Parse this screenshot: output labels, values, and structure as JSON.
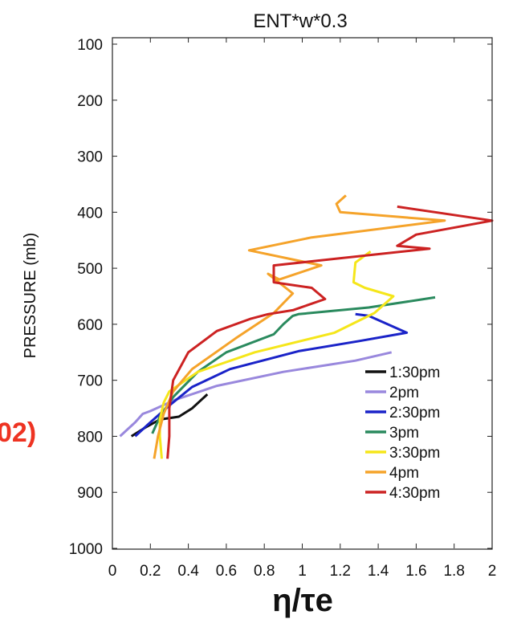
{
  "panel_tag": "02)",
  "chart_data": {
    "type": "line",
    "title": "ENT*w*0.3",
    "xlabel": "η/τe",
    "ylabel": "PRESSURE (mb)",
    "xlim": [
      0,
      2
    ],
    "ylim": [
      1000,
      100
    ],
    "y_inverted": true,
    "grid": false,
    "legend_placement": "lower-right",
    "x_ticks": [
      0,
      0.2,
      0.4,
      0.6,
      0.8,
      1,
      1.2,
      1.4,
      1.6,
      1.8,
      2
    ],
    "x_tick_labels": [
      "0",
      "0.2",
      "0.4",
      "0.6",
      "0.8",
      "1",
      "1.2",
      "1.4",
      "1.6",
      "1.8",
      "2"
    ],
    "y_ticks": [
      100,
      200,
      300,
      400,
      500,
      600,
      700,
      800,
      900,
      1000
    ],
    "y_tick_labels": [
      "100",
      "200",
      "300",
      "400",
      "500",
      "600",
      "700",
      "800",
      "900",
      "1000"
    ],
    "series": [
      {
        "name": "1:30pm",
        "color": "#111111",
        "x": [
          0.5,
          0.42,
          0.35,
          0.25,
          0.17,
          0.1
        ],
        "y": [
          725,
          750,
          765,
          770,
          785,
          800
        ]
      },
      {
        "name": "2pm",
        "color": "#9988dd",
        "x": [
          1.47,
          1.28,
          0.9,
          0.55,
          0.33,
          0.2,
          0.16,
          0.12,
          0.04
        ],
        "y": [
          650,
          665,
          685,
          710,
          735,
          755,
          760,
          775,
          800
        ]
      },
      {
        "name": "2:30pm",
        "color": "#1a23c8",
        "x": [
          1.28,
          1.35,
          1.55,
          1.3,
          0.98,
          0.62,
          0.42,
          0.3,
          0.2,
          0.12
        ],
        "y": [
          582,
          585,
          615,
          630,
          648,
          680,
          712,
          745,
          775,
          800
        ]
      },
      {
        "name": "3pm",
        "color": "#2a8a5e",
        "x": [
          1.7,
          1.35,
          0.98,
          0.95,
          0.9,
          0.85,
          0.6,
          0.45,
          0.32,
          0.25,
          0.21
        ],
        "y": [
          552,
          570,
          582,
          585,
          600,
          618,
          650,
          685,
          730,
          765,
          795
        ]
      },
      {
        "name": "3:30pm",
        "color": "#f5e61a",
        "x": [
          1.36,
          1.28,
          1.27,
          1.33,
          1.48,
          1.38,
          1.17,
          0.75,
          0.45,
          0.3,
          0.27,
          0.25,
          0.25,
          0.26
        ],
        "y": [
          470,
          490,
          525,
          535,
          550,
          580,
          615,
          650,
          685,
          720,
          740,
          770,
          800,
          840
        ]
      },
      {
        "name": "4pm",
        "color": "#f5a32a",
        "x": [
          1.23,
          1.18,
          1.2,
          1.75,
          1.05,
          0.72,
          1.1,
          0.88,
          0.82,
          0.95,
          0.85,
          0.65,
          0.42,
          0.32,
          0.27,
          0.24,
          0.22
        ],
        "y": [
          370,
          385,
          400,
          415,
          445,
          468,
          495,
          520,
          510,
          545,
          580,
          625,
          680,
          720,
          760,
          800,
          840
        ]
      },
      {
        "name": "4:30pm",
        "color": "#cc2222",
        "x": [
          1.5,
          1.7,
          2.0,
          1.6,
          1.5,
          1.67,
          0.85,
          0.85,
          1.05,
          1.12,
          0.95,
          0.82,
          0.73,
          0.55,
          0.4,
          0.32,
          0.3,
          0.3,
          0.29
        ],
        "y": [
          390,
          400,
          415,
          440,
          460,
          465,
          495,
          525,
          535,
          555,
          575,
          582,
          590,
          612,
          650,
          700,
          750,
          800,
          840
        ]
      }
    ]
  }
}
